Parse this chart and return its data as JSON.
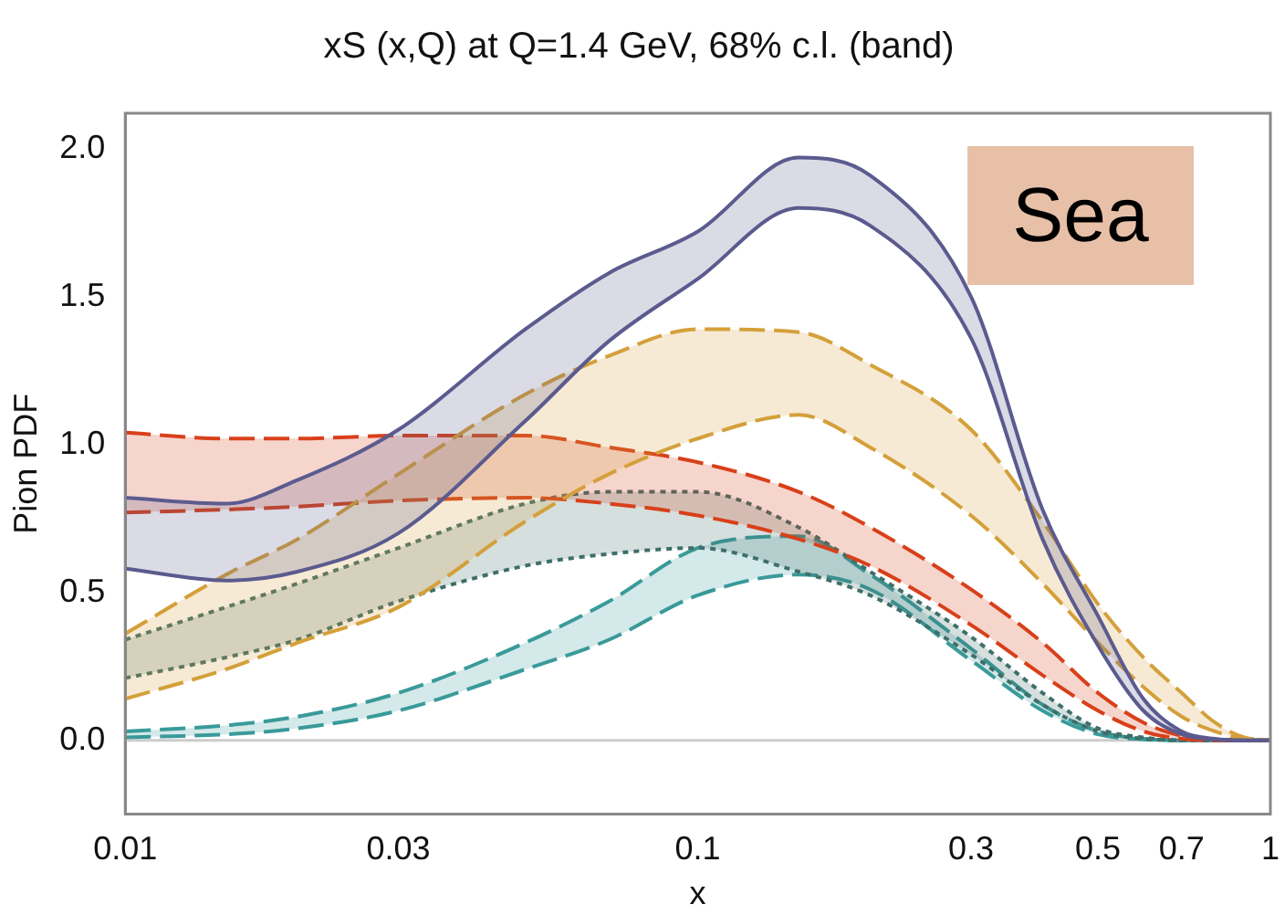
{
  "chart_data": {
    "type": "line",
    "title": "xS (x,Q) at Q=1.4 GeV, 68% c.l. (band)",
    "xlabel": "x",
    "ylabel": "Pion PDF",
    "annotations": [
      "Sea"
    ],
    "x": [
      0.01,
      0.015,
      0.02,
      0.03,
      0.05,
      0.07,
      0.1,
      0.15,
      0.2,
      0.3,
      0.4,
      0.5,
      0.6,
      0.7,
      0.8,
      0.9,
      1
    ],
    "series": [
      {
        "color": "#5b5b8f",
        "line_style": "solid",
        "values": [
          0.82,
          0.8,
          0.88,
          1.05,
          1.39,
          1.58,
          1.72,
          1.97,
          1.91,
          1.5,
          0.78,
          0.42,
          0.14,
          0.03,
          0.005,
          0,
          0
        ]
      },
      {
        "color": "#5b5b8f",
        "line_style": "solid",
        "values": [
          0.58,
          0.54,
          0.57,
          0.7,
          1.08,
          1.35,
          1.56,
          1.8,
          1.74,
          1.36,
          0.68,
          0.32,
          0.1,
          0.02,
          0.003,
          0,
          0
        ],
        "upper": [
          0.82,
          0.8,
          0.88,
          1.05,
          1.39,
          1.58,
          1.72,
          1.97,
          1.91,
          1.5,
          0.78,
          0.42,
          0.14,
          0.03,
          0.005,
          0,
          0
        ],
        "lower": [
          0.58,
          0.54,
          0.57,
          0.7,
          1.08,
          1.35,
          1.56,
          1.8,
          1.74,
          1.36,
          0.68,
          0.32,
          0.1,
          0.02,
          0.003,
          0,
          0
        ]
      },
      {
        "color": "#d4a03a",
        "line_style": "dashed",
        "values": [
          0.36,
          0.56,
          0.68,
          0.9,
          1.17,
          1.3,
          1.39,
          1.38,
          1.27,
          1.05,
          0.74,
          0.46,
          0.28,
          0.16,
          0.06,
          0.01,
          0
        ]
      },
      {
        "color": "#d4a03a",
        "line_style": "dashed",
        "values": [
          0.14,
          0.24,
          0.33,
          0.45,
          0.74,
          0.9,
          1.02,
          1.1,
          0.99,
          0.76,
          0.53,
          0.33,
          0.18,
          0.08,
          0.03,
          0.005,
          0
        ],
        "upper": [
          0.36,
          0.56,
          0.68,
          0.9,
          1.17,
          1.3,
          1.39,
          1.38,
          1.27,
          1.05,
          0.74,
          0.46,
          0.28,
          0.16,
          0.06,
          0.01,
          0
        ],
        "lower": [
          0.14,
          0.24,
          0.33,
          0.45,
          0.74,
          0.9,
          1.02,
          1.1,
          0.99,
          0.76,
          0.53,
          0.33,
          0.18,
          0.08,
          0.03,
          0.005,
          0
        ]
      },
      {
        "color": "#d8401a",
        "line_style": "dashed",
        "values": [
          1.04,
          1.02,
          1.02,
          1.03,
          1.03,
          0.99,
          0.94,
          0.84,
          0.72,
          0.51,
          0.33,
          0.16,
          0.06,
          0.015,
          0.003,
          0,
          0
        ]
      },
      {
        "color": "#d8401a",
        "line_style": "dashed",
        "values": [
          0.77,
          0.78,
          0.79,
          0.81,
          0.82,
          0.8,
          0.76,
          0.68,
          0.59,
          0.39,
          0.22,
          0.1,
          0.03,
          0.005,
          0,
          0,
          0
        ],
        "upper": [
          1.04,
          1.02,
          1.02,
          1.03,
          1.03,
          0.99,
          0.94,
          0.84,
          0.72,
          0.51,
          0.33,
          0.16,
          0.06,
          0.015,
          0.003,
          0,
          0
        ],
        "lower": [
          0.77,
          0.78,
          0.79,
          0.81,
          0.82,
          0.8,
          0.76,
          0.68,
          0.59,
          0.39,
          0.22,
          0.1,
          0.03,
          0.005,
          0,
          0,
          0
        ]
      },
      {
        "color": "#3f6f6a",
        "line_style": "dotted",
        "values": [
          0.34,
          0.45,
          0.53,
          0.65,
          0.8,
          0.84,
          0.84,
          0.72,
          0.57,
          0.35,
          0.16,
          0.04,
          0.01,
          0,
          0,
          0,
          0
        ]
      },
      {
        "color": "#3f6f6a",
        "line_style": "dotted",
        "values": [
          0.21,
          0.28,
          0.34,
          0.47,
          0.59,
          0.63,
          0.65,
          0.57,
          0.49,
          0.29,
          0.12,
          0.03,
          0.005,
          0,
          0,
          0,
          0
        ],
        "upper": [
          0.34,
          0.45,
          0.53,
          0.65,
          0.8,
          0.84,
          0.84,
          0.72,
          0.57,
          0.35,
          0.16,
          0.04,
          0.01,
          0,
          0,
          0,
          0
        ],
        "lower": [
          0.21,
          0.28,
          0.34,
          0.47,
          0.59,
          0.63,
          0.65,
          0.57,
          0.49,
          0.29,
          0.12,
          0.03,
          0.005,
          0,
          0,
          0,
          0
        ]
      },
      {
        "color": "#3a9a9a",
        "line_style": "dashed",
        "values": [
          0.03,
          0.05,
          0.08,
          0.16,
          0.33,
          0.47,
          0.65,
          0.69,
          0.56,
          0.31,
          0.12,
          0.03,
          0.005,
          0,
          0,
          0,
          0
        ]
      },
      {
        "color": "#3a9a9a",
        "line_style": "dashed",
        "values": [
          0.01,
          0.02,
          0.04,
          0.1,
          0.24,
          0.34,
          0.49,
          0.56,
          0.51,
          0.27,
          0.1,
          0.02,
          0.003,
          0,
          0,
          0,
          0
        ],
        "upper": [
          0.03,
          0.05,
          0.08,
          0.16,
          0.33,
          0.47,
          0.65,
          0.69,
          0.56,
          0.31,
          0.12,
          0.03,
          0.005,
          0,
          0,
          0,
          0
        ],
        "lower": [
          0.01,
          0.02,
          0.04,
          0.1,
          0.24,
          0.34,
          0.49,
          0.56,
          0.51,
          0.27,
          0.1,
          0.02,
          0.003,
          0,
          0,
          0,
          0
        ]
      }
    ],
    "xlim": [
      0.01,
      1
    ],
    "xticks": [
      0.01,
      0.03,
      0.1,
      0.3,
      0.5,
      0.7,
      1
    ],
    "log": "x",
    "ylim": [
      -0.25,
      2.12
    ],
    "yticks": [
      {
        "value": 0,
        "label": "0.0"
      },
      {
        "value": 0.5,
        "label": "0.5"
      },
      {
        "value": 1,
        "label": "1.0"
      },
      {
        "value": 1.5,
        "label": "1.5"
      },
      {
        "value": 2,
        "label": "2.0"
      }
    ],
    "ref_lines": [
      {
        "axis": "y",
        "value": 0,
        "color": "#cccccc"
      }
    ],
    "grid": false,
    "legend": false
  }
}
